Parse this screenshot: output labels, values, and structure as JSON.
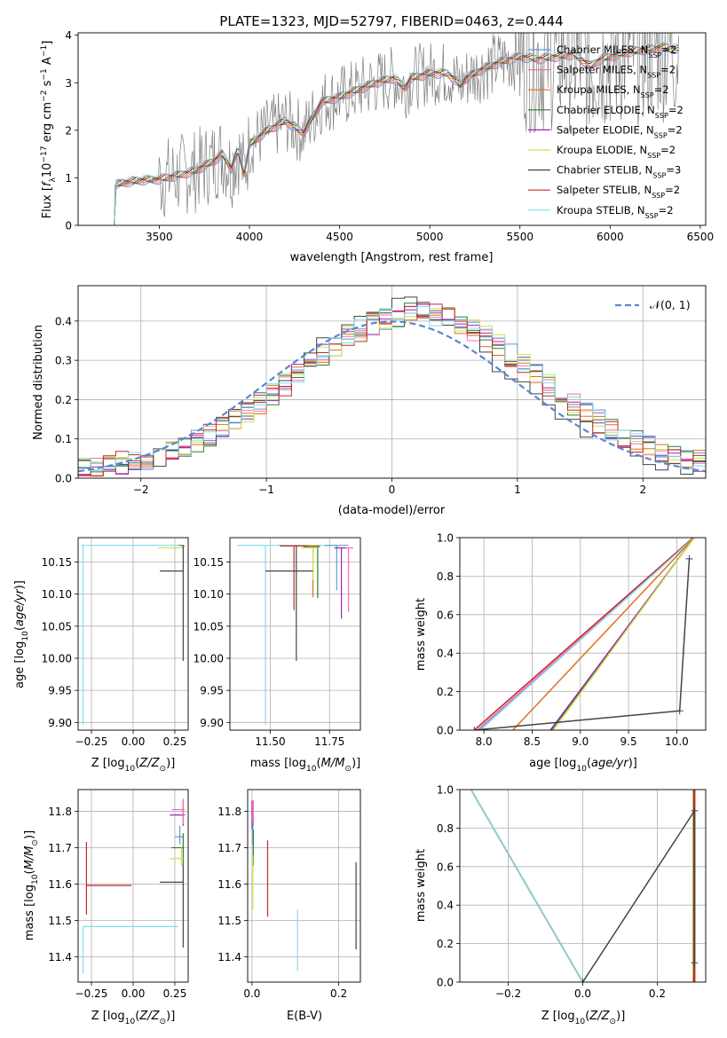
{
  "figure_title": "PLATE=1323, MJD=52797, FIBERID=0463, z=0.444",
  "models": [
    {
      "name": "Chabrier MILES",
      "legend": "Chabrier MILES, N_SSP=2",
      "color": "#5b9bd5"
    },
    {
      "name": "Salpeter MILES",
      "legend": "Salpeter MILES, N_SSP=2",
      "color": "#ff69b4"
    },
    {
      "name": "Kroupa MILES",
      "legend": "Kroupa MILES, N_SSP=2",
      "color": "#e07020"
    },
    {
      "name": "Chabrier ELODIE",
      "legend": "Chabrier ELODIE, N_SSP=2",
      "color": "#2e7d32"
    },
    {
      "name": "Salpeter ELODIE",
      "legend": "Salpeter ELODIE, N_SSP=2",
      "color": "#9c27b0"
    },
    {
      "name": "Kroupa ELODIE",
      "legend": "Kroupa ELODIE, N_SSP=2",
      "color": "#c8e646"
    },
    {
      "name": "Chabrier STELIB",
      "legend": "Chabrier STELIB, N_SSP=3",
      "color": "#444444"
    },
    {
      "name": "Salpeter STELIB",
      "legend": "Salpeter STELIB, N_SSP=2",
      "color": "#c62828"
    },
    {
      "name": "Kroupa STELIB",
      "legend": "Kroupa STELIB, N_SSP=2",
      "color": "#80deea"
    }
  ],
  "chart_data": [
    {
      "id": "spectrum",
      "type": "line",
      "xlabel": "wavelength [Angstrom, rest frame]",
      "ylabel": "Flux [f_λ 10^-17 erg cm^-2 s^-1 A^-1]",
      "xlim": [
        3050,
        6530
      ],
      "ylim": [
        0,
        4.05
      ],
      "xticks": [
        3500,
        4000,
        4500,
        5000,
        5500,
        6000,
        6500
      ],
      "yticks": [
        0,
        1,
        2,
        3,
        4
      ],
      "data_color": "#808080",
      "model_shape": {
        "x": [
          3250,
          3260,
          3300,
          3400,
          3500,
          3600,
          3700,
          3800,
          3850,
          3900,
          3935,
          3970,
          4000,
          4100,
          4200,
          4300,
          4400,
          4500,
          4600,
          4700,
          4800,
          4860,
          4900,
          5000,
          5100,
          5170,
          5200,
          5300,
          5400,
          5500,
          5600,
          5700,
          5800,
          5890,
          5950,
          6000,
          6100,
          6200,
          6300,
          6380
        ],
        "y": [
          0.85,
          0.85,
          0.9,
          0.95,
          0.97,
          1.05,
          1.15,
          1.35,
          1.5,
          1.2,
          1.6,
          1.1,
          1.7,
          2.0,
          2.2,
          1.95,
          2.6,
          2.7,
          2.85,
          3.0,
          3.1,
          2.9,
          3.1,
          3.2,
          3.2,
          2.95,
          3.1,
          3.3,
          3.45,
          3.55,
          3.5,
          3.55,
          3.6,
          3.35,
          3.5,
          3.55,
          3.65,
          3.7,
          3.75,
          3.7
        ]
      }
    },
    {
      "id": "residuals",
      "type": "step",
      "xlabel": "(data-model)/error",
      "ylabel": "Normed distribution",
      "xlim": [
        -2.5,
        2.5
      ],
      "ylim": [
        0,
        0.49
      ],
      "xticks": [
        -2,
        -1,
        0,
        1,
        2
      ],
      "yticks": [
        0.0,
        0.1,
        0.2,
        0.3,
        0.4
      ],
      "gaussian_label": "𝒩(0, 1)",
      "legend_position": "top-right"
    },
    {
      "id": "age-vs-Z",
      "type": "errorbar",
      "xlabel": "Z [log10(Z/Z⊙)]",
      "ylabel": "age [log10(age/yr)]",
      "xlim": [
        -0.33,
        0.33
      ],
      "ylim": [
        9.888,
        10.188
      ],
      "xticks": [
        -0.25,
        0.0,
        0.25
      ],
      "yticks": [
        9.9,
        9.95,
        10.0,
        10.05,
        10.1,
        10.15
      ]
    },
    {
      "id": "age-vs-mass",
      "type": "errorbar",
      "xlabel": "mass [log10(M/M⊙)]",
      "ylabel": "",
      "xlim": [
        11.33,
        11.88
      ],
      "ylim": [
        9.888,
        10.188
      ],
      "xticks": [
        11.5,
        11.75
      ],
      "yticks": [
        9.9,
        9.95,
        10.0,
        10.05,
        10.1,
        10.15
      ]
    },
    {
      "id": "weight-vs-age",
      "type": "line",
      "xlabel": "age [log10(age/yr)]",
      "ylabel": "mass weight",
      "xlim": [
        7.75,
        10.3
      ],
      "ylim": [
        0,
        1
      ],
      "xticks": [
        8.0,
        8.5,
        9.0,
        9.5,
        10.0
      ],
      "yticks": [
        0.0,
        0.2,
        0.4,
        0.6,
        0.8,
        1.0
      ]
    },
    {
      "id": "mass-vs-Z",
      "type": "errorbar",
      "xlabel": "Z [log10(Z/Z⊙)]",
      "ylabel": "mass [log10(M/M⊙)]",
      "xlim": [
        -0.33,
        0.33
      ],
      "ylim": [
        11.33,
        11.86
      ],
      "xticks": [
        -0.25,
        0.0,
        0.25
      ],
      "yticks": [
        11.4,
        11.5,
        11.6,
        11.7,
        11.8
      ]
    },
    {
      "id": "mass-vs-EBV",
      "type": "errorbar",
      "xlabel": "E(B-V)",
      "ylabel": "",
      "xlim": [
        -0.01,
        0.25
      ],
      "ylim": [
        11.33,
        11.86
      ],
      "xticks": [
        0.0,
        0.2
      ],
      "yticks": [
        11.4,
        11.5,
        11.6,
        11.7,
        11.8
      ]
    },
    {
      "id": "weight-vs-Z",
      "type": "line",
      "xlabel": "Z [log10(Z/Z⊙)]",
      "ylabel": "mass weight",
      "xlim": [
        -0.33,
        0.33
      ],
      "ylim": [
        0,
        1
      ],
      "xticks": [
        -0.2,
        0.0,
        0.2
      ],
      "yticks": [
        0.0,
        0.2,
        0.4,
        0.6,
        0.8,
        1.0
      ]
    }
  ]
}
